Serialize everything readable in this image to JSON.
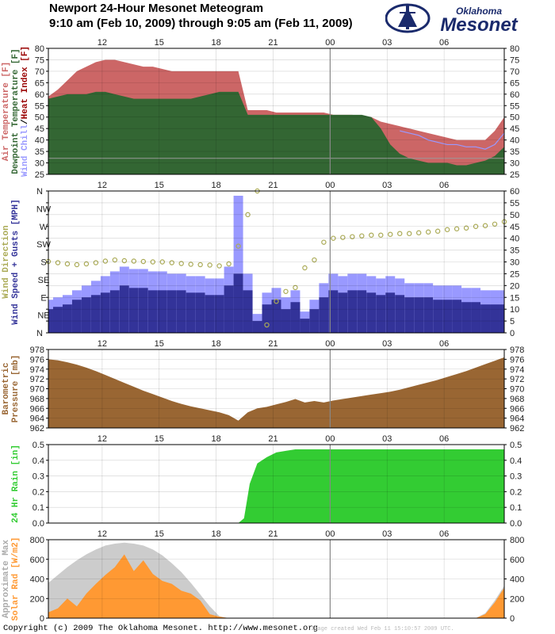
{
  "header": {
    "title_line1": "Newport 24-Hour Mesonet Meteogram",
    "title_line2": "9:10 am (Feb 10, 2009) through 9:05 am (Feb 11, 2009)",
    "logo_top": "Oklahoma",
    "logo_bottom": "Mesonet"
  },
  "footer": {
    "copyright": "Copyright (c) 2009 The Oklahoma Mesonet. http://www.mesonet.org",
    "created": "Image created Wed Feb 11 15:10:57 2009 UTC."
  },
  "colors": {
    "air_temp": "#cc6666",
    "dewpoint": "#336633",
    "wind_chill": "#9999ff",
    "heat_index": "#990000",
    "wind_dir": "#aaaa55",
    "wind_speed": "#333399",
    "gusts": "#9999ff",
    "pressure": "#996633",
    "rain": "#33cc33",
    "solar": "#ff9933",
    "solar_max": "#cccccc"
  },
  "chart_data": [
    {
      "type": "area",
      "id": "temperature",
      "time_ticks": [
        "12",
        "15",
        "18",
        "21",
        "00",
        "03",
        "06"
      ],
      "ylim": [
        25,
        80
      ],
      "ylabels": [
        {
          "text": "Air Temperature [F]",
          "color": "#cc6666"
        },
        {
          "text": "Dewpoint Temperature [F]",
          "color": "#336633"
        },
        {
          "text": "Wind Chill",
          "color": "#9999ff"
        },
        {
          "text": "/",
          "color": "#000000"
        },
        {
          "text": "Heat Index [F]",
          "color": "#990000"
        }
      ],
      "x_hours": [
        0,
        0.5,
        1,
        1.5,
        2,
        2.5,
        3,
        3.5,
        4,
        4.5,
        5,
        5.5,
        6,
        6.5,
        7,
        7.5,
        8,
        8.5,
        9,
        9.5,
        10,
        10.5,
        11,
        11.5,
        12,
        12.5,
        13,
        13.5,
        14,
        14.5,
        15,
        15.5,
        16,
        16.5,
        17,
        17.5,
        18,
        18.5,
        19,
        19.5,
        20,
        20.5,
        21,
        21.5,
        22,
        22.5,
        23,
        23.5,
        24
      ],
      "series": [
        {
          "name": "Air Temperature",
          "values": [
            59,
            62,
            66,
            70,
            72,
            74,
            75,
            75,
            74,
            73,
            72,
            72,
            71,
            70,
            70,
            70,
            70,
            70,
            70,
            70,
            70,
            53,
            53,
            53,
            52,
            52,
            52,
            52,
            52,
            52,
            51,
            51,
            51,
            50,
            50,
            48,
            47,
            46,
            45,
            44,
            43,
            42,
            41,
            40,
            40,
            40,
            40,
            44,
            50
          ]
        },
        {
          "name": "Dewpoint Temperature",
          "values": [
            58,
            59,
            60,
            60,
            60,
            61,
            61,
            60,
            59,
            58,
            58,
            58,
            58,
            58,
            58,
            58,
            59,
            60,
            61,
            61,
            61,
            51,
            51,
            51,
            51,
            51,
            51,
            51,
            51,
            51,
            51,
            51,
            51,
            51,
            50,
            45,
            38,
            34,
            32,
            31,
            30,
            30,
            30,
            29,
            29,
            30,
            31,
            33,
            37
          ]
        },
        {
          "name": "Wind Chill",
          "values": [
            null,
            null,
            null,
            null,
            null,
            null,
            null,
            null,
            null,
            null,
            null,
            null,
            null,
            null,
            null,
            null,
            null,
            null,
            null,
            null,
            null,
            null,
            null,
            null,
            null,
            null,
            null,
            null,
            null,
            null,
            null,
            null,
            null,
            null,
            null,
            null,
            null,
            44,
            43,
            42,
            40,
            39,
            38,
            38,
            37,
            37,
            36,
            38,
            43
          ]
        }
      ]
    },
    {
      "type": "bar",
      "id": "wind",
      "time_ticks": [
        "12",
        "15",
        "18",
        "21",
        "00",
        "03",
        "06"
      ],
      "ylim": [
        0,
        60
      ],
      "dir_ticks": [
        "N",
        "NW",
        "W",
        "SW",
        "S",
        "SE",
        "E",
        "NE",
        "N"
      ],
      "ylabels": [
        {
          "text": "Wind Direction",
          "color": "#aaaa55"
        },
        {
          "text": "Wind Speed + Gusts [MPH]",
          "color": "#333399"
        }
      ],
      "x_hours": [
        0,
        0.5,
        1,
        1.5,
        2,
        2.5,
        3,
        3.5,
        4,
        4.5,
        5,
        5.5,
        6,
        6.5,
        7,
        7.5,
        8,
        8.5,
        9,
        9.5,
        10,
        10.5,
        11,
        11.5,
        12,
        12.5,
        13,
        13.5,
        14,
        14.5,
        15,
        15.5,
        16,
        16.5,
        17,
        17.5,
        18,
        18.5,
        19,
        19.5,
        20,
        20.5,
        21,
        21.5,
        22,
        22.5,
        23,
        23.5,
        24
      ],
      "series": [
        {
          "name": "Wind Speed",
          "values": [
            10,
            11,
            12,
            14,
            15,
            16,
            17,
            18,
            20,
            19,
            19,
            18,
            18,
            18,
            18,
            17,
            17,
            16,
            16,
            20,
            25,
            18,
            5,
            12,
            14,
            10,
            13,
            6,
            10,
            15,
            18,
            17,
            18,
            18,
            17,
            16,
            17,
            16,
            15,
            15,
            15,
            14,
            14,
            14,
            13,
            13,
            12,
            12,
            12
          ]
        },
        {
          "name": "Gusts",
          "values": [
            14,
            15,
            16,
            18,
            20,
            22,
            24,
            26,
            28,
            27,
            27,
            26,
            26,
            25,
            25,
            24,
            24,
            23,
            23,
            28,
            58,
            25,
            8,
            17,
            19,
            15,
            18,
            9,
            14,
            21,
            25,
            24,
            25,
            25,
            24,
            23,
            24,
            23,
            21,
            21,
            21,
            20,
            20,
            20,
            19,
            19,
            18,
            18,
            18
          ]
        },
        {
          "name": "Wind Direction",
          "values": [
            181,
            178,
            175,
            173,
            175,
            178,
            182,
            185,
            183,
            182,
            181,
            180,
            180,
            178,
            176,
            174,
            173,
            172,
            170,
            175,
            220,
            300,
            360,
            20,
            80,
            105,
            115,
            165,
            185,
            230,
            240,
            242,
            244,
            246,
            248,
            248,
            250,
            252,
            252,
            254,
            256,
            258,
            262,
            264,
            266,
            270,
            272,
            276,
            282
          ]
        }
      ]
    },
    {
      "type": "area",
      "id": "pressure",
      "time_ticks": [
        "12",
        "15",
        "18",
        "21",
        "00",
        "03",
        "06"
      ],
      "ylim": [
        962,
        978
      ],
      "ylabels": [
        {
          "text": "Barometric",
          "color": "#996633"
        },
        {
          "text": "Pressure [mb]",
          "color": "#996633"
        }
      ],
      "x_hours": [
        0,
        0.5,
        1,
        1.5,
        2,
        2.5,
        3,
        3.5,
        4,
        4.5,
        5,
        5.5,
        6,
        6.5,
        7,
        7.5,
        8,
        8.5,
        9,
        9.5,
        10,
        10.5,
        11,
        11.5,
        12,
        12.5,
        13,
        13.5,
        14,
        14.5,
        15,
        15.5,
        16,
        16.5,
        17,
        17.5,
        18,
        18.5,
        19,
        19.5,
        20,
        20.5,
        21,
        21.5,
        22,
        22.5,
        23,
        23.5,
        24
      ],
      "series": [
        {
          "name": "Barometric Pressure",
          "values": [
            976.0,
            975.8,
            975.4,
            974.9,
            974.3,
            973.6,
            972.8,
            972.0,
            971.2,
            970.4,
            969.6,
            968.9,
            968.2,
            967.5,
            966.9,
            966.4,
            966.0,
            965.6,
            965.2,
            964.6,
            963.5,
            965.2,
            966.0,
            966.3,
            966.8,
            967.3,
            967.9,
            967.2,
            967.5,
            967.2,
            967.6,
            967.9,
            968.2,
            968.5,
            968.8,
            969.1,
            969.4,
            969.8,
            970.3,
            970.8,
            971.3,
            971.8,
            972.4,
            973.0,
            973.6,
            974.3,
            975.0,
            975.7,
            976.4
          ]
        }
      ]
    },
    {
      "type": "area",
      "id": "rain",
      "time_ticks": [
        "12",
        "15",
        "18",
        "21",
        "00",
        "03",
        "06"
      ],
      "ylim": [
        0,
        0.5
      ],
      "ylabels": [
        {
          "text": "24 Hr Rain [in]",
          "color": "#33cc33"
        }
      ],
      "x_hours": [
        0,
        10.0,
        10.3,
        10.6,
        11.0,
        11.5,
        12.0,
        12.5,
        13.0,
        14.0,
        15.0,
        24.0
      ],
      "series": [
        {
          "name": "24 Hr Rain",
          "values": [
            0,
            0,
            0.03,
            0.25,
            0.38,
            0.42,
            0.45,
            0.46,
            0.47,
            0.47,
            0.47,
            0.47
          ]
        }
      ]
    },
    {
      "type": "area",
      "id": "solar",
      "time_ticks": [
        "12",
        "15",
        "18",
        "21",
        "00",
        "03",
        "06"
      ],
      "ylim": [
        0,
        800
      ],
      "ylabels": [
        {
          "text": "Approximate Max",
          "color": "#aaaaaa"
        },
        {
          "text": "Solar Rad [W/m2]",
          "color": "#ff9933"
        }
      ],
      "x_hours": [
        0,
        0.5,
        1,
        1.5,
        2,
        2.5,
        3,
        3.5,
        4,
        4.5,
        5,
        5.5,
        6,
        6.5,
        7,
        7.5,
        8,
        8.5,
        9,
        9.5,
        10,
        10.5,
        11,
        11.5,
        12,
        12.5,
        13,
        13.5,
        14,
        14.5,
        15,
        15.5,
        16,
        16.5,
        17,
        17.5,
        18,
        18.5,
        19,
        19.5,
        20,
        20.5,
        21,
        21.5,
        22,
        22.5,
        23,
        23.5,
        24
      ],
      "series": [
        {
          "name": "Approximate Max",
          "values": [
            360,
            440,
            520,
            590,
            650,
            700,
            740,
            760,
            770,
            760,
            740,
            700,
            640,
            560,
            470,
            360,
            240,
            120,
            20,
            0,
            0,
            0,
            0,
            0,
            0,
            0,
            0,
            0,
            0,
            0,
            0,
            0,
            0,
            0,
            0,
            0,
            0,
            0,
            0,
            0,
            0,
            0,
            0,
            0,
            0,
            0,
            50,
            180,
            330
          ]
        },
        {
          "name": "Solar Rad",
          "values": [
            60,
            100,
            200,
            120,
            250,
            350,
            440,
            520,
            650,
            480,
            590,
            450,
            380,
            350,
            280,
            250,
            180,
            40,
            15,
            0,
            0,
            0,
            0,
            0,
            0,
            0,
            0,
            0,
            0,
            0,
            0,
            0,
            0,
            0,
            0,
            0,
            0,
            0,
            0,
            0,
            0,
            0,
            0,
            0,
            0,
            0,
            40,
            160,
            310
          ]
        }
      ]
    }
  ]
}
